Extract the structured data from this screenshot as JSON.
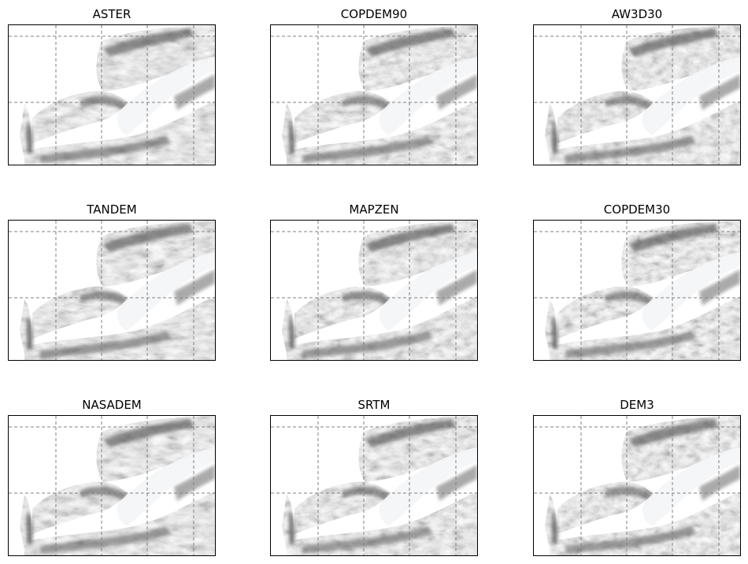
{
  "figure": {
    "panels": [
      {
        "title": "ASTER"
      },
      {
        "title": "COPDEM90"
      },
      {
        "title": "AW3D30"
      },
      {
        "title": "TANDEM"
      },
      {
        "title": "MAPZEN"
      },
      {
        "title": "COPDEM30"
      },
      {
        "title": "NASADEM"
      },
      {
        "title": "SRTM"
      },
      {
        "title": "DEM3"
      }
    ],
    "image_style": "grayscale hillshade",
    "gridlines": "dashed gray",
    "colors": {
      "background": "#ffffff",
      "frame": "#000000",
      "grid": "#808080"
    }
  }
}
